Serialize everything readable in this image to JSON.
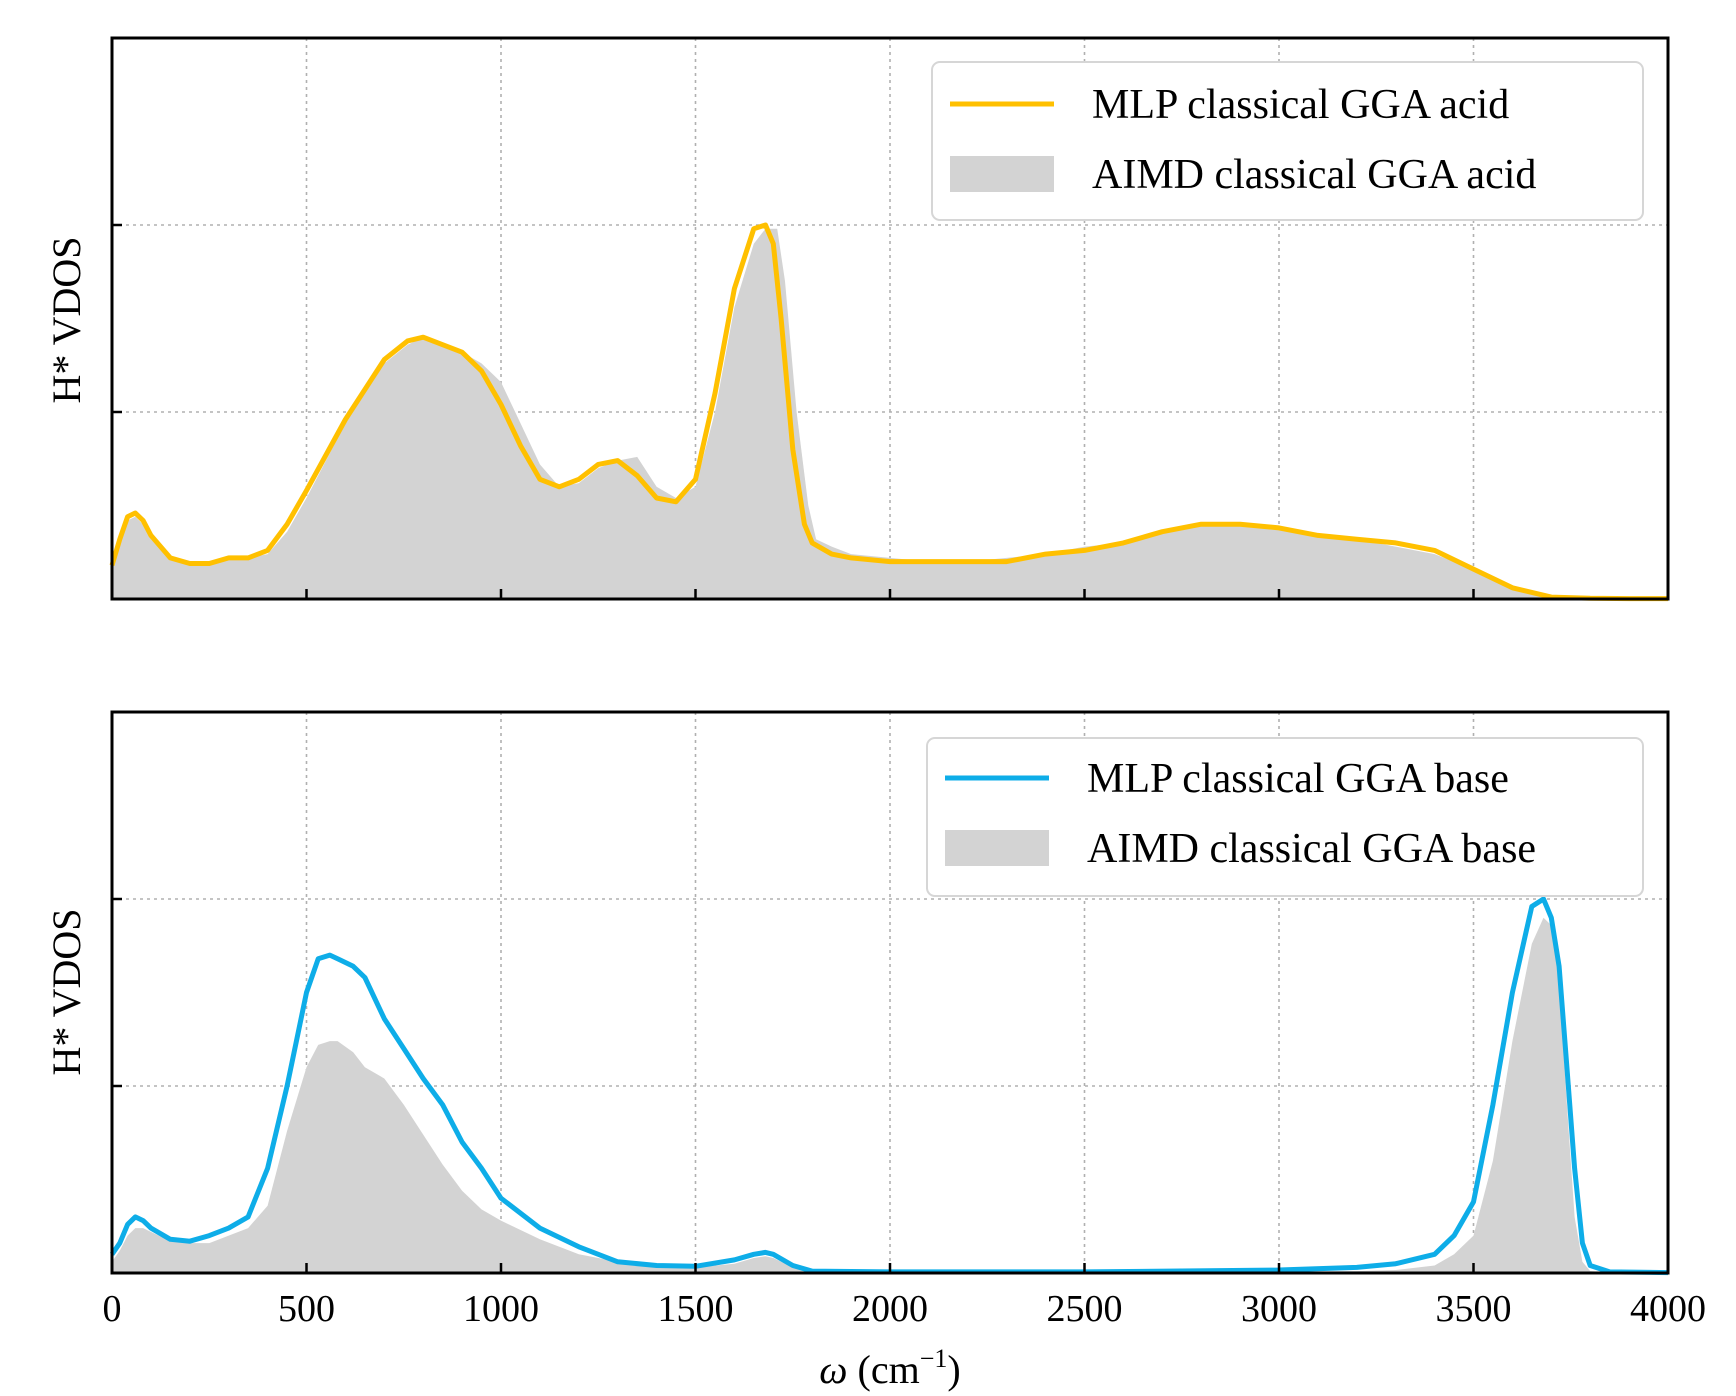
{
  "chart_data": [
    {
      "type": "area",
      "xlabel": "ω (cm⁻¹)",
      "ylabel": "H* VDOS",
      "xlim": [
        0,
        4000
      ],
      "ylim": [
        0,
        1.5
      ],
      "xticks": [
        0,
        500,
        1000,
        1500,
        2000,
        2500,
        3000,
        3500,
        4000
      ],
      "yticks_grid": [
        0.5,
        1.0
      ],
      "show_xtick_labels": false,
      "grid": true,
      "legend_position": "top-right",
      "series": [
        {
          "name": "MLP classical GGA acid",
          "style": "line",
          "color": "#FFC000",
          "x": [
            0,
            20,
            40,
            60,
            80,
            100,
            150,
            200,
            250,
            300,
            350,
            400,
            450,
            500,
            600,
            700,
            760,
            800,
            850,
            900,
            950,
            1000,
            1050,
            1100,
            1150,
            1200,
            1250,
            1300,
            1350,
            1400,
            1450,
            1500,
            1550,
            1600,
            1650,
            1680,
            1700,
            1720,
            1750,
            1780,
            1800,
            1850,
            1900,
            2000,
            2100,
            2200,
            2300,
            2400,
            2500,
            2600,
            2700,
            2800,
            2900,
            3000,
            3100,
            3200,
            3300,
            3400,
            3500,
            3600,
            3700,
            3800,
            3900,
            4000
          ],
          "y": [
            0.09,
            0.16,
            0.22,
            0.23,
            0.21,
            0.17,
            0.11,
            0.095,
            0.095,
            0.11,
            0.11,
            0.13,
            0.2,
            0.29,
            0.48,
            0.64,
            0.69,
            0.7,
            0.68,
            0.66,
            0.61,
            0.52,
            0.41,
            0.32,
            0.3,
            0.32,
            0.36,
            0.37,
            0.33,
            0.27,
            0.26,
            0.32,
            0.55,
            0.83,
            0.99,
            1.0,
            0.95,
            0.75,
            0.4,
            0.2,
            0.15,
            0.12,
            0.11,
            0.1,
            0.1,
            0.1,
            0.1,
            0.12,
            0.13,
            0.15,
            0.18,
            0.2,
            0.2,
            0.19,
            0.17,
            0.16,
            0.15,
            0.13,
            0.08,
            0.03,
            0.005,
            0.002,
            0.001,
            0.001
          ]
        },
        {
          "name": "AIMD classical GGA acid",
          "style": "fill",
          "color": "#D3D3D3",
          "x": [
            0,
            20,
            40,
            60,
            80,
            100,
            150,
            200,
            250,
            300,
            350,
            400,
            450,
            500,
            600,
            700,
            760,
            800,
            850,
            900,
            950,
            1000,
            1050,
            1100,
            1150,
            1200,
            1250,
            1300,
            1350,
            1400,
            1450,
            1500,
            1550,
            1600,
            1650,
            1680,
            1710,
            1730,
            1760,
            1790,
            1810,
            1850,
            1900,
            2000,
            2100,
            2200,
            2300,
            2400,
            2500,
            2600,
            2700,
            2800,
            2900,
            3000,
            3100,
            3200,
            3300,
            3400,
            3500,
            3600,
            3700,
            3800,
            3900,
            4000
          ],
          "y": [
            0.09,
            0.15,
            0.21,
            0.22,
            0.2,
            0.16,
            0.11,
            0.095,
            0.095,
            0.11,
            0.11,
            0.12,
            0.18,
            0.27,
            0.47,
            0.63,
            0.68,
            0.7,
            0.68,
            0.66,
            0.63,
            0.58,
            0.47,
            0.36,
            0.3,
            0.31,
            0.35,
            0.37,
            0.38,
            0.3,
            0.27,
            0.3,
            0.5,
            0.78,
            0.95,
            0.99,
            0.99,
            0.85,
            0.5,
            0.25,
            0.16,
            0.14,
            0.12,
            0.11,
            0.1,
            0.1,
            0.11,
            0.12,
            0.14,
            0.15,
            0.18,
            0.2,
            0.2,
            0.19,
            0.17,
            0.16,
            0.14,
            0.12,
            0.08,
            0.03,
            0.005,
            0.002,
            0.001,
            0.001
          ]
        }
      ]
    },
    {
      "type": "area",
      "xlabel": "ω (cm⁻¹)",
      "ylabel": "H* VDOS",
      "xlim": [
        0,
        4000
      ],
      "ylim": [
        0,
        1.5
      ],
      "xticks": [
        0,
        500,
        1000,
        1500,
        2000,
        2500,
        3000,
        3500,
        4000
      ],
      "yticks_grid": [
        0.5,
        1.0
      ],
      "show_xtick_labels": true,
      "grid": true,
      "legend_position": "top-right",
      "series": [
        {
          "name": "MLP classical GGA base",
          "style": "line",
          "color": "#0EADE8",
          "x": [
            0,
            20,
            40,
            60,
            80,
            100,
            150,
            200,
            250,
            300,
            350,
            400,
            450,
            500,
            530,
            560,
            580,
            620,
            650,
            700,
            750,
            800,
            850,
            900,
            950,
            1000,
            1100,
            1200,
            1300,
            1400,
            1500,
            1600,
            1650,
            1680,
            1700,
            1750,
            1800,
            2000,
            2500,
            3000,
            3200,
            3300,
            3400,
            3450,
            3500,
            3550,
            3600,
            3650,
            3680,
            3700,
            3720,
            3740,
            3760,
            3780,
            3800,
            3850,
            4000
          ],
          "y": [
            0.05,
            0.08,
            0.13,
            0.15,
            0.14,
            0.12,
            0.09,
            0.085,
            0.1,
            0.12,
            0.15,
            0.28,
            0.5,
            0.75,
            0.84,
            0.85,
            0.84,
            0.82,
            0.79,
            0.68,
            0.6,
            0.52,
            0.45,
            0.35,
            0.28,
            0.2,
            0.12,
            0.07,
            0.03,
            0.02,
            0.018,
            0.035,
            0.05,
            0.055,
            0.05,
            0.02,
            0.005,
            0.003,
            0.003,
            0.008,
            0.015,
            0.025,
            0.05,
            0.1,
            0.19,
            0.45,
            0.75,
            0.98,
            1.0,
            0.95,
            0.82,
            0.55,
            0.28,
            0.08,
            0.02,
            0.003,
            0.001
          ]
        },
        {
          "name": "AIMD classical GGA base",
          "style": "fill",
          "color": "#D3D3D3",
          "x": [
            0,
            20,
            40,
            60,
            80,
            100,
            150,
            200,
            250,
            300,
            350,
            400,
            450,
            500,
            530,
            560,
            580,
            620,
            650,
            700,
            750,
            800,
            850,
            900,
            950,
            1000,
            1100,
            1200,
            1300,
            1400,
            1500,
            1600,
            1650,
            1680,
            1700,
            1750,
            1800,
            2000,
            2500,
            3000,
            3200,
            3300,
            3400,
            3450,
            3500,
            3550,
            3600,
            3650,
            3680,
            3700,
            3720,
            3740,
            3760,
            3780,
            3800,
            3850,
            4000
          ],
          "y": [
            0.03,
            0.06,
            0.1,
            0.12,
            0.12,
            0.11,
            0.085,
            0.08,
            0.08,
            0.1,
            0.12,
            0.18,
            0.38,
            0.55,
            0.61,
            0.62,
            0.62,
            0.59,
            0.55,
            0.52,
            0.45,
            0.37,
            0.29,
            0.22,
            0.17,
            0.14,
            0.09,
            0.05,
            0.03,
            0.02,
            0.015,
            0.025,
            0.04,
            0.045,
            0.04,
            0.015,
            0.004,
            0.002,
            0.002,
            0.004,
            0.005,
            0.008,
            0.02,
            0.05,
            0.1,
            0.3,
            0.62,
            0.88,
            0.95,
            0.93,
            0.78,
            0.45,
            0.15,
            0.03,
            0.005,
            0.001,
            0.001
          ]
        }
      ]
    }
  ]
}
